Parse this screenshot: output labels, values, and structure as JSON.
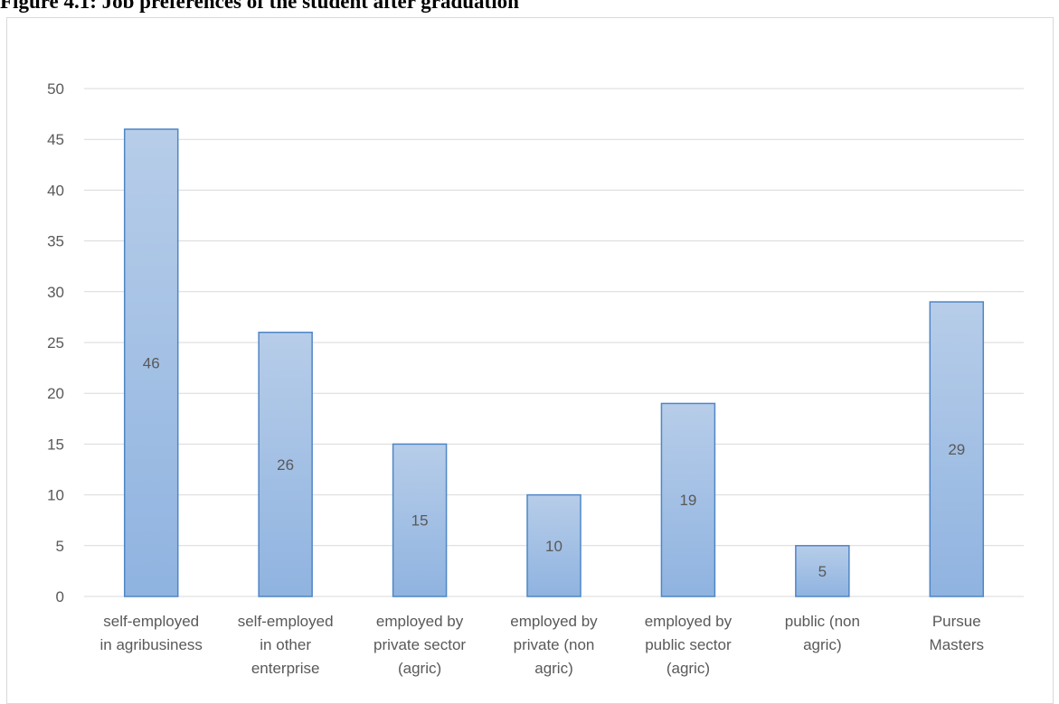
{
  "caption": "Figure 4.1: Job preferences of the student after graduation",
  "chart_data": {
    "type": "bar",
    "title": "",
    "xlabel": "",
    "ylabel": "",
    "ylim": [
      0,
      50
    ],
    "yticks": [
      0,
      5,
      10,
      15,
      20,
      25,
      30,
      35,
      40,
      45,
      50
    ],
    "grid": true,
    "legend": "none",
    "categories": [
      [
        "self-employed",
        "in agribusiness"
      ],
      [
        "self-employed",
        "in other",
        "enterprise"
      ],
      [
        "employed by",
        "private sector",
        "(agric)"
      ],
      [
        "employed by",
        "private (non",
        "agric)"
      ],
      [
        "employed by",
        "public sector",
        "(agric)"
      ],
      [
        "public (non",
        "agric)"
      ],
      [
        "Pursue",
        "Masters"
      ]
    ],
    "values": [
      46,
      26,
      15,
      10,
      19,
      5,
      29
    ],
    "colors": {
      "bar_top": "#b7cde9",
      "bar_bottom": "#8fb3e0",
      "bar_border": "#4f86c6",
      "grid": "#d9d9d9",
      "text": "#595959"
    }
  }
}
